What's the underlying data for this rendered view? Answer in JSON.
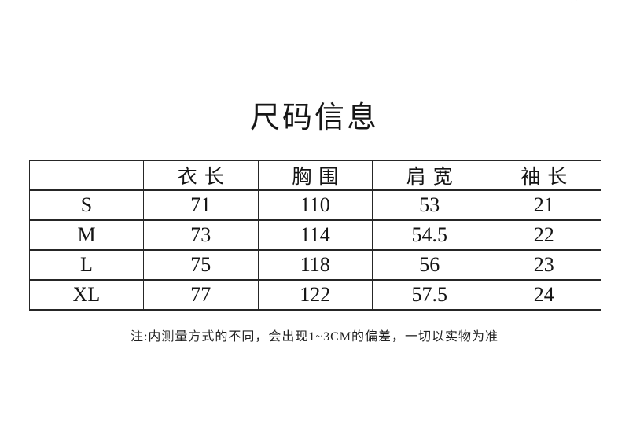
{
  "title": "尺码信息",
  "corner_mark": "·′",
  "table": {
    "headers": [
      "",
      "衣长",
      "胸围",
      "肩宽",
      "袖长"
    ],
    "rows": [
      [
        "S",
        "71",
        "110",
        "53",
        "21"
      ],
      [
        "M",
        "73",
        "114",
        "54.5",
        "22"
      ],
      [
        "L",
        "75",
        "118",
        "56",
        "23"
      ],
      [
        "XL",
        "77",
        "122",
        "57.5",
        "24"
      ]
    ]
  },
  "note": "注:内测量方式的不同，会出现1~3CM的偏差，一切以实物为准",
  "colors": {
    "background": "#ffffff",
    "text": "#1a1a1a",
    "border": "#262626"
  }
}
